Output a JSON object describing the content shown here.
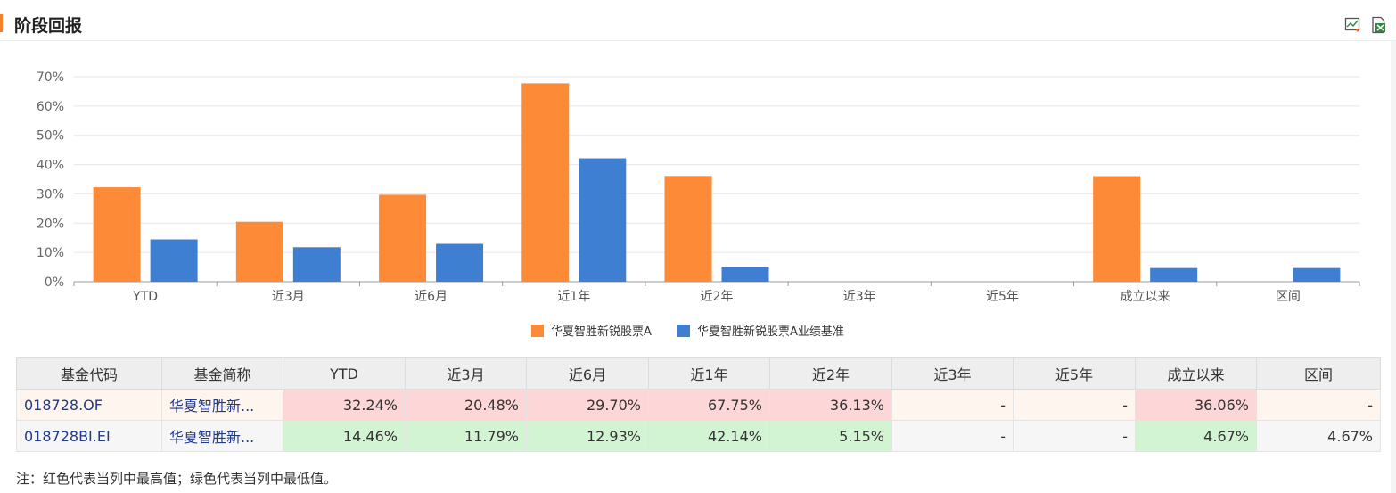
{
  "header": {
    "title": "阶段回报"
  },
  "chart_data": {
    "type": "bar",
    "categories": [
      "YTD",
      "近3月",
      "近6月",
      "近1年",
      "近2年",
      "近3年",
      "近5年",
      "成立以来",
      "区间"
    ],
    "series": [
      {
        "name": "华夏智胜新锐股票A",
        "color": "#fd8a37",
        "values": [
          32.24,
          20.48,
          29.7,
          67.75,
          36.13,
          null,
          null,
          36.06,
          null
        ]
      },
      {
        "name": "华夏智胜新锐股票A业绩基准",
        "color": "#3f7fd2",
        "values": [
          14.46,
          11.79,
          12.93,
          42.14,
          5.15,
          null,
          null,
          4.67,
          4.67
        ]
      }
    ],
    "yticks": [
      "0%",
      "10%",
      "20%",
      "30%",
      "40%",
      "50%",
      "60%",
      "70%"
    ],
    "ylim": [
      0,
      70
    ],
    "grid": true,
    "legend_position": "bottom-center"
  },
  "table": {
    "headers": [
      "基金代码",
      "基金简称",
      "YTD",
      "近3月",
      "近6月",
      "近1年",
      "近2年",
      "近3年",
      "近5年",
      "成立以来",
      "区间"
    ],
    "rows": [
      {
        "cells": [
          "018728.OF",
          "华夏智胜新...",
          "32.24%",
          "20.48%",
          "29.70%",
          "67.75%",
          "36.13%",
          "-",
          "-",
          "36.06%",
          "-"
        ]
      },
      {
        "cells": [
          "018728BI.EI",
          "华夏智胜新...",
          "14.46%",
          "11.79%",
          "12.93%",
          "42.14%",
          "5.15%",
          "-",
          "-",
          "4.67%",
          "4.67%"
        ]
      }
    ]
  },
  "footnote": "注：红色代表当列中最高值；绿色代表当列中最低值。",
  "icons": [
    "chart-export-icon",
    "excel-export-icon"
  ]
}
